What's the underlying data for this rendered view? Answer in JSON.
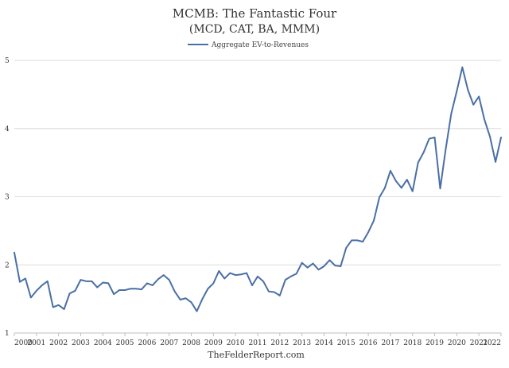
{
  "chart_data": {
    "type": "line",
    "title": "MCMB: The Fantastic Four",
    "subtitle": "(MCD, CAT, BA, MMM)",
    "legend": {
      "position": "top-center",
      "entries": [
        "Aggregate EV-to-Revenues"
      ]
    },
    "footer": "TheFelderReport.com",
    "colors": {
      "series": "#4a6fa5",
      "grid": "#dcdcdc",
      "text": "#333333"
    },
    "grid": true,
    "xlim": [
      2000,
      2022
    ],
    "ylim": [
      1,
      5
    ],
    "x_ticks": [
      "2000",
      "2001",
      "2002",
      "2003",
      "2004",
      "2005",
      "2006",
      "2007",
      "2008",
      "2009",
      "2010",
      "2011",
      "2012",
      "2013",
      "2014",
      "2015",
      "2016",
      "2017",
      "2018",
      "2019",
      "2020",
      "2021",
      "2022"
    ],
    "y_ticks": [
      "1",
      "2",
      "3",
      "4",
      "5"
    ],
    "series": [
      {
        "name": "Aggregate EV-to-Revenues",
        "x": [
          2000.0,
          2000.25,
          2000.5,
          2000.75,
          2001.0,
          2001.25,
          2001.5,
          2001.75,
          2002.0,
          2002.25,
          2002.5,
          2002.75,
          2003.0,
          2003.25,
          2003.5,
          2003.75,
          2004.0,
          2004.25,
          2004.5,
          2004.75,
          2005.0,
          2005.25,
          2005.5,
          2005.75,
          2006.0,
          2006.25,
          2006.5,
          2006.75,
          2007.0,
          2007.25,
          2007.5,
          2007.75,
          2008.0,
          2008.25,
          2008.5,
          2008.75,
          2009.0,
          2009.25,
          2009.5,
          2009.75,
          2010.0,
          2010.25,
          2010.5,
          2010.75,
          2011.0,
          2011.25,
          2011.5,
          2011.75,
          2012.0,
          2012.25,
          2012.5,
          2012.75,
          2013.0,
          2013.25,
          2013.5,
          2013.75,
          2014.0,
          2014.25,
          2014.5,
          2014.75,
          2015.0,
          2015.25,
          2015.5,
          2015.75,
          2016.0,
          2016.25,
          2016.5,
          2016.75,
          2017.0,
          2017.25,
          2017.5,
          2017.75,
          2018.0,
          2018.25,
          2018.5,
          2018.75,
          2019.0,
          2019.25,
          2019.5,
          2019.75,
          2020.0,
          2020.25,
          2020.5,
          2020.75,
          2021.0,
          2021.25,
          2021.5,
          2021.75,
          2022.0
        ],
        "values": [
          2.18,
          1.75,
          1.8,
          1.52,
          1.62,
          1.7,
          1.76,
          1.38,
          1.41,
          1.35,
          1.58,
          1.62,
          1.78,
          1.76,
          1.76,
          1.67,
          1.74,
          1.73,
          1.57,
          1.63,
          1.63,
          1.65,
          1.65,
          1.64,
          1.73,
          1.7,
          1.79,
          1.85,
          1.78,
          1.61,
          1.49,
          1.51,
          1.45,
          1.32,
          1.5,
          1.65,
          1.73,
          1.91,
          1.8,
          1.88,
          1.85,
          1.86,
          1.88,
          1.7,
          1.83,
          1.76,
          1.61,
          1.6,
          1.55,
          1.78,
          1.83,
          1.87,
          2.03,
          1.96,
          2.02,
          1.93,
          1.98,
          2.07,
          1.99,
          1.98,
          2.25,
          2.36,
          2.36,
          2.34,
          2.48,
          2.65,
          2.99,
          3.13,
          3.38,
          3.23,
          3.13,
          3.25,
          3.08,
          3.5,
          3.65,
          3.85,
          3.87,
          3.12,
          3.7,
          4.22,
          4.55,
          4.9,
          4.57,
          4.35,
          4.47,
          4.13,
          3.88,
          3.51,
          3.87
        ]
      }
    ]
  }
}
